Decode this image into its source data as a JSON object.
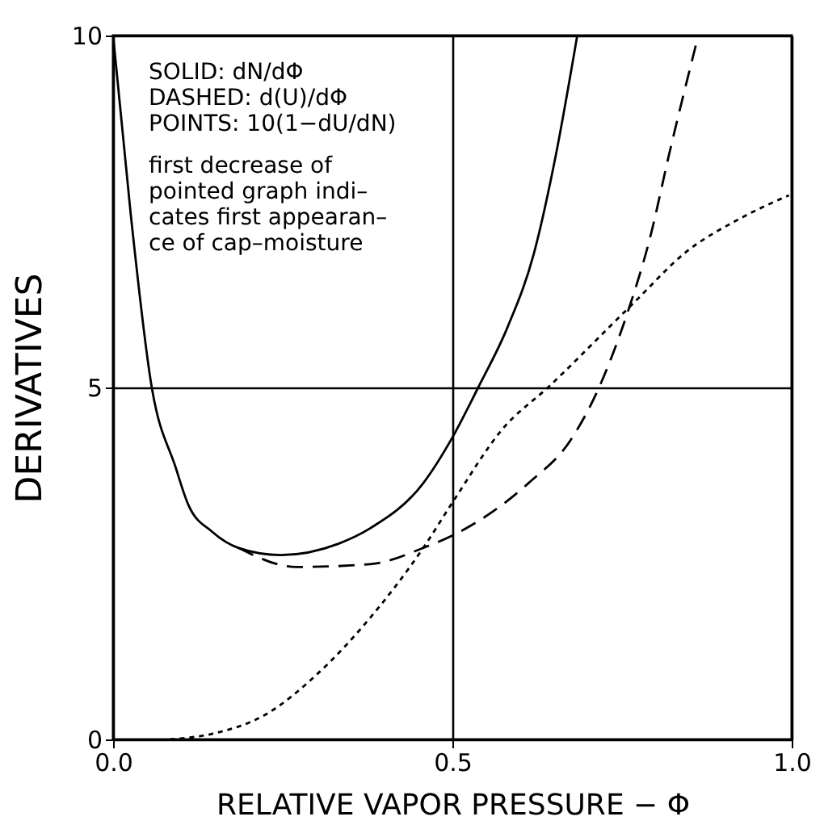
{
  "chart_data": {
    "type": "line",
    "xlabel": "RELATIVE VAPOR PRESSURE − Φ",
    "ylabel": "DERIVATIVES",
    "xlim": [
      0,
      1
    ],
    "ylim": [
      0,
      10
    ],
    "xticks": [
      {
        "value": 0,
        "label": "0.0"
      },
      {
        "value": 0.5,
        "label": "0.5"
      },
      {
        "value": 1,
        "label": "1.0"
      }
    ],
    "yticks": [
      0,
      5,
      10
    ],
    "grid": true,
    "annotations": [
      "SOLID: dN/dΦ",
      "DASHED: d(U)/dΦ",
      "POINTS: 10(1−dU/dN)",
      "first decrease of",
      "pointed graph indi–",
      "cates first appearan–",
      "ce of cap–moisture"
    ],
    "series": [
      {
        "color": "#000000",
        "line_style": "solid",
        "x": [
          0,
          0.026,
          0.057,
          0.092,
          0.111,
          0.146,
          0.185,
          0.247,
          0.332,
          0.379,
          0.457,
          0.5,
          0.538,
          0.581,
          0.62,
          0.651,
          0.684
        ],
        "values": [
          10,
          7.46,
          5,
          3.87,
          3.33,
          2.95,
          2.72,
          2.62,
          2.78,
          3,
          3.64,
          4.29,
          5,
          5.85,
          6.9,
          8.23,
          10
        ]
      },
      {
        "color": "#000000",
        "line_style": "dashed",
        "x": [
          0.185,
          0.27,
          0.379,
          0.457,
          0.511,
          0.557,
          0.612,
          0.674,
          0.717,
          0.759,
          0.79,
          0.821,
          0.86
        ],
        "values": [
          2.72,
          2.45,
          2.49,
          2.72,
          2.95,
          3.22,
          3.64,
          4.25,
          5.02,
          6.09,
          7.08,
          8.38,
          9.91
        ]
      },
      {
        "color": "#000000",
        "line_style": "dotted",
        "x": [
          0.084,
          0.146,
          0.224,
          0.301,
          0.379,
          0.457,
          0.503,
          0.573,
          0.643,
          0.767,
          0.845,
          0.922,
          0.996
        ],
        "values": [
          0,
          0.08,
          0.35,
          0.93,
          1.73,
          2.72,
          3.41,
          4.4,
          5.02,
          6.2,
          6.93,
          7.39,
          7.73
        ]
      }
    ]
  }
}
